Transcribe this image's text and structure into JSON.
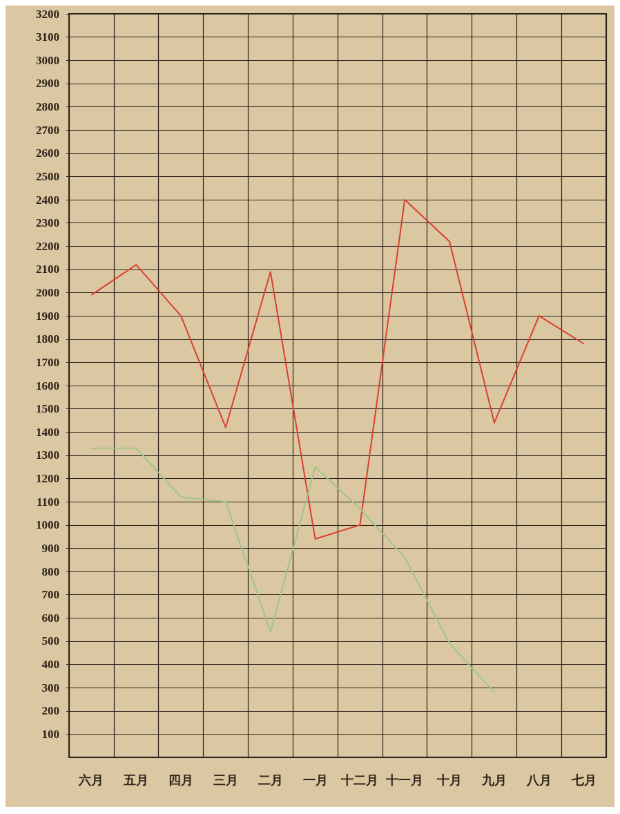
{
  "chart_data": {
    "type": "line",
    "categories": [
      "六月",
      "五月",
      "四月",
      "三月",
      "二月",
      "一月",
      "十二月",
      "十一月",
      "十月",
      "九月",
      "八月",
      "七月"
    ],
    "series": [
      {
        "color": "#d8412f",
        "values": [
          1990,
          2120,
          1900,
          1420,
          2090,
          940,
          1000,
          2400,
          2220,
          1440,
          1900,
          1780
        ]
      },
      {
        "color": "#9cc58a",
        "values": [
          1330,
          1330,
          1120,
          1100,
          540,
          1250,
          1070,
          860,
          490,
          280,
          null,
          null
        ]
      }
    ],
    "ylim": [
      0,
      3200
    ],
    "yticks": [
      100,
      200,
      300,
      400,
      500,
      600,
      700,
      800,
      900,
      1000,
      1100,
      1200,
      1300,
      1400,
      1500,
      1600,
      1700,
      1800,
      1900,
      2000,
      2100,
      2200,
      2300,
      2400,
      2500,
      2600,
      2700,
      2800,
      2900,
      3000,
      3100,
      3200
    ],
    "grid": true,
    "marker": "none",
    "line_style": "solid"
  }
}
